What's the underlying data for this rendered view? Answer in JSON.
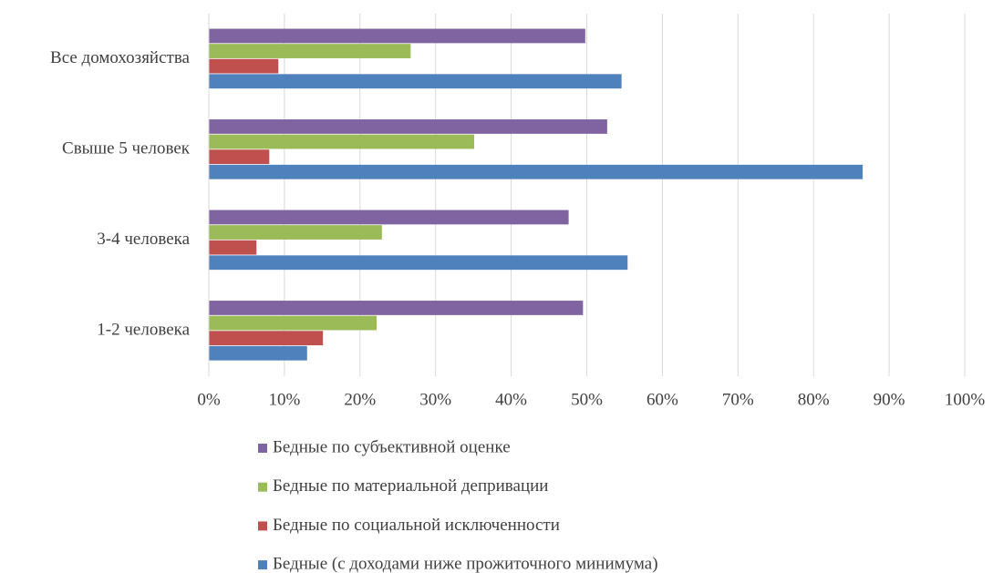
{
  "chart_data": {
    "type": "hbar",
    "categories": [
      "Все домохозяйства",
      "Свыше 5 человек",
      "3-4 человека",
      "1-2 человека"
    ],
    "series": [
      {
        "name": "Бедные по субъективной оценке",
        "color": "#8064a2",
        "values": [
          49.8,
          52.7,
          47.6,
          49.5
        ]
      },
      {
        "name": "Бедные по материальной депривации",
        "color": "#9bbb59",
        "values": [
          26.7,
          35.1,
          22.9,
          22.2
        ]
      },
      {
        "name": "Бедные по социальной исключенности",
        "color": "#c0504d",
        "values": [
          9.2,
          8.0,
          6.3,
          15.1
        ]
      },
      {
        "name": "Бедные (с доходами ниже прожиточного минимума)",
        "color": "#4f81bd",
        "values": [
          54.6,
          86.5,
          55.4,
          13.0
        ]
      }
    ],
    "xlim": [
      0,
      100
    ],
    "xticks": [
      {
        "value": 0,
        "label": "0%"
      },
      {
        "value": 10,
        "label": "10%"
      },
      {
        "value": 20,
        "label": "20%"
      },
      {
        "value": 30,
        "label": "30%"
      },
      {
        "value": 40,
        "label": "40%"
      },
      {
        "value": 50,
        "label": "50%"
      },
      {
        "value": 60,
        "label": "60%"
      },
      {
        "value": 70,
        "label": "70%"
      },
      {
        "value": 80,
        "label": "80%"
      },
      {
        "value": 90,
        "label": "90%"
      },
      {
        "value": 100,
        "label": "100%"
      }
    ],
    "grid": true,
    "legend": "bottom"
  }
}
